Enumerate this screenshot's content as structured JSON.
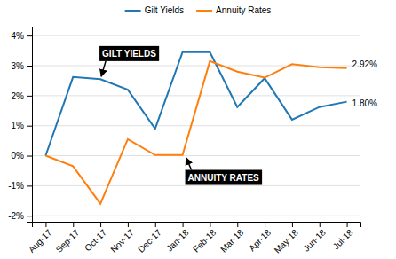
{
  "chart_data": {
    "type": "line",
    "categories": [
      "Aug-17",
      "Sep-17",
      "Oct-17",
      "Nov-17",
      "Dec-17",
      "Jan-18",
      "Feb-18",
      "Mar-18",
      "Apr-18",
      "May-18",
      "Jun-18",
      "Jul-18"
    ],
    "series": [
      {
        "name": "Gilt Yields",
        "values": [
          0.0,
          2.62,
          2.55,
          2.2,
          0.9,
          3.45,
          3.45,
          1.62,
          2.58,
          1.2,
          1.62,
          1.8
        ],
        "value_labels": [
          null,
          null,
          null,
          null,
          null,
          null,
          null,
          null,
          null,
          null,
          null,
          "1.80%"
        ]
      },
      {
        "name": "Annuity Rates",
        "values": [
          0.0,
          -0.35,
          -1.6,
          0.55,
          0.02,
          0.02,
          3.15,
          2.8,
          2.6,
          3.05,
          2.95,
          2.92
        ],
        "value_labels": [
          null,
          null,
          null,
          null,
          null,
          null,
          null,
          null,
          null,
          null,
          null,
          "2.92%"
        ]
      }
    ],
    "ylim": [
      -2.2,
      4.3
    ],
    "yticks": [
      {
        "value": -2,
        "label": "-2%"
      },
      {
        "value": -1,
        "label": "-1%"
      },
      {
        "value": 0,
        "label": "0%"
      },
      {
        "value": 1,
        "label": "1%"
      },
      {
        "value": 2,
        "label": "2%"
      },
      {
        "value": 3,
        "label": "3%"
      },
      {
        "value": 4,
        "label": "4%"
      }
    ],
    "grid": true,
    "legend": "top",
    "annotations": [
      "GILT YIELDS",
      "ANNUITY RATES"
    ]
  }
}
